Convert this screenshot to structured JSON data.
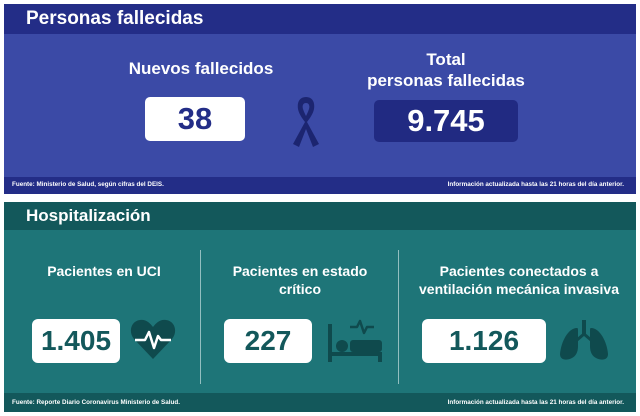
{
  "deaths": {
    "title": "Personas fallecidas",
    "new_label": "Nuevos fallecidos",
    "new_value": "38",
    "total_label_line1": "Total",
    "total_label_line2": "personas fallecidas",
    "total_value": "9.745",
    "icon": "ribbon-icon",
    "source": "Fuente: Ministerio de Salud, según cifras del DEIS.",
    "update_note": "Información actualizada hasta las 21 horas  del día anterior."
  },
  "hospital": {
    "title": "Hospitalización",
    "uci_label": "Pacientes en UCI",
    "uci_value": "1.405",
    "critical_label_line1": "Pacientes en estado",
    "critical_label_line2": "crítico",
    "critical_value": "227",
    "vent_label_line1": "Pacientes conectados a",
    "vent_label_line2": "ventilación mecánica invasiva",
    "vent_value": "1.126",
    "icons": [
      "heart-pulse-icon",
      "hospital-bed-icon",
      "lungs-icon"
    ],
    "source": "Fuente: Reporte Diario Coronavirus Ministerio de Salud.",
    "update_note": "Información actualizada hasta las 21 horas  del día anterior."
  },
  "colors": {
    "deaths_panel": "#3b4aa6",
    "deaths_band": "#232d87",
    "hospital_panel": "#1e7578",
    "hospital_band": "#13585b"
  }
}
